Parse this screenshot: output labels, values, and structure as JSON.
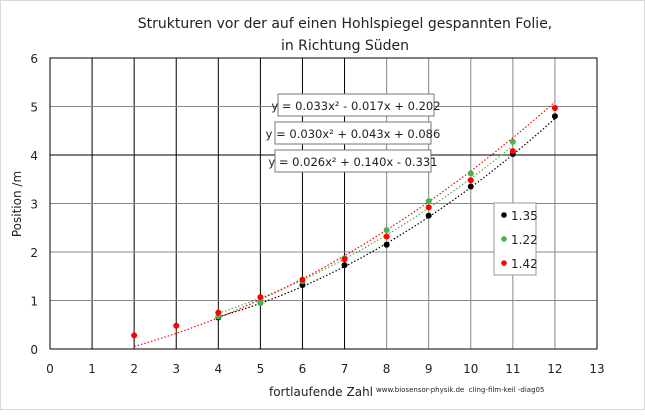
{
  "chart_data": {
    "type": "scatter",
    "title": [
      "Strukturen vor der auf einen Hohlspiegel gespannten Folie,",
      "in Richtung Süden"
    ],
    "xlabel": "fortlaufende Zahl",
    "ylabel": "Position /m",
    "xlim": [
      0,
      13
    ],
    "ylim": [
      0,
      6
    ],
    "xticks": [
      0,
      1,
      2,
      3,
      4,
      5,
      6,
      7,
      8,
      9,
      10,
      11,
      12,
      13
    ],
    "yticks": [
      0,
      1,
      2,
      3,
      4,
      5,
      6
    ],
    "grid": true,
    "legend_position": "right",
    "watermark": "www.biosensor-physik.de  cling-film-keil -diag05",
    "series": [
      {
        "name": "1.35",
        "color": "#000000",
        "x": [
          4,
          5,
          6,
          7,
          8,
          9,
          10,
          11,
          12
        ],
        "y": [
          0.65,
          0.95,
          1.32,
          1.73,
          2.15,
          2.75,
          3.35,
          4.02,
          4.8
        ],
        "trendline": {
          "label": "y = 0.033x² - 0.017x + 0.202",
          "coef": [
            0.033,
            -0.017,
            0.202
          ]
        }
      },
      {
        "name": "1.22",
        "color": "#4caf50",
        "x": [
          4,
          5,
          6,
          7,
          8,
          9,
          10,
          11
        ],
        "y": [
          0.67,
          0.95,
          1.4,
          1.87,
          2.45,
          3.05,
          3.62,
          4.27
        ],
        "trendline": {
          "label": "y = 0.030x² + 0.043x + 0.086",
          "coef": [
            0.03,
            0.043,
            0.086
          ]
        }
      },
      {
        "name": "1.42",
        "color": "#ff0000",
        "x": [
          2,
          3,
          4,
          5,
          6,
          7,
          8,
          9,
          10,
          11,
          12
        ],
        "y": [
          0.28,
          0.48,
          0.75,
          1.07,
          1.43,
          1.85,
          2.32,
          2.92,
          3.48,
          4.08,
          4.97
        ],
        "trendline": {
          "label": "y = 0.026x² + 0.140x - 0.331",
          "coef": [
            0.026,
            0.14,
            -0.331
          ]
        }
      }
    ]
  }
}
